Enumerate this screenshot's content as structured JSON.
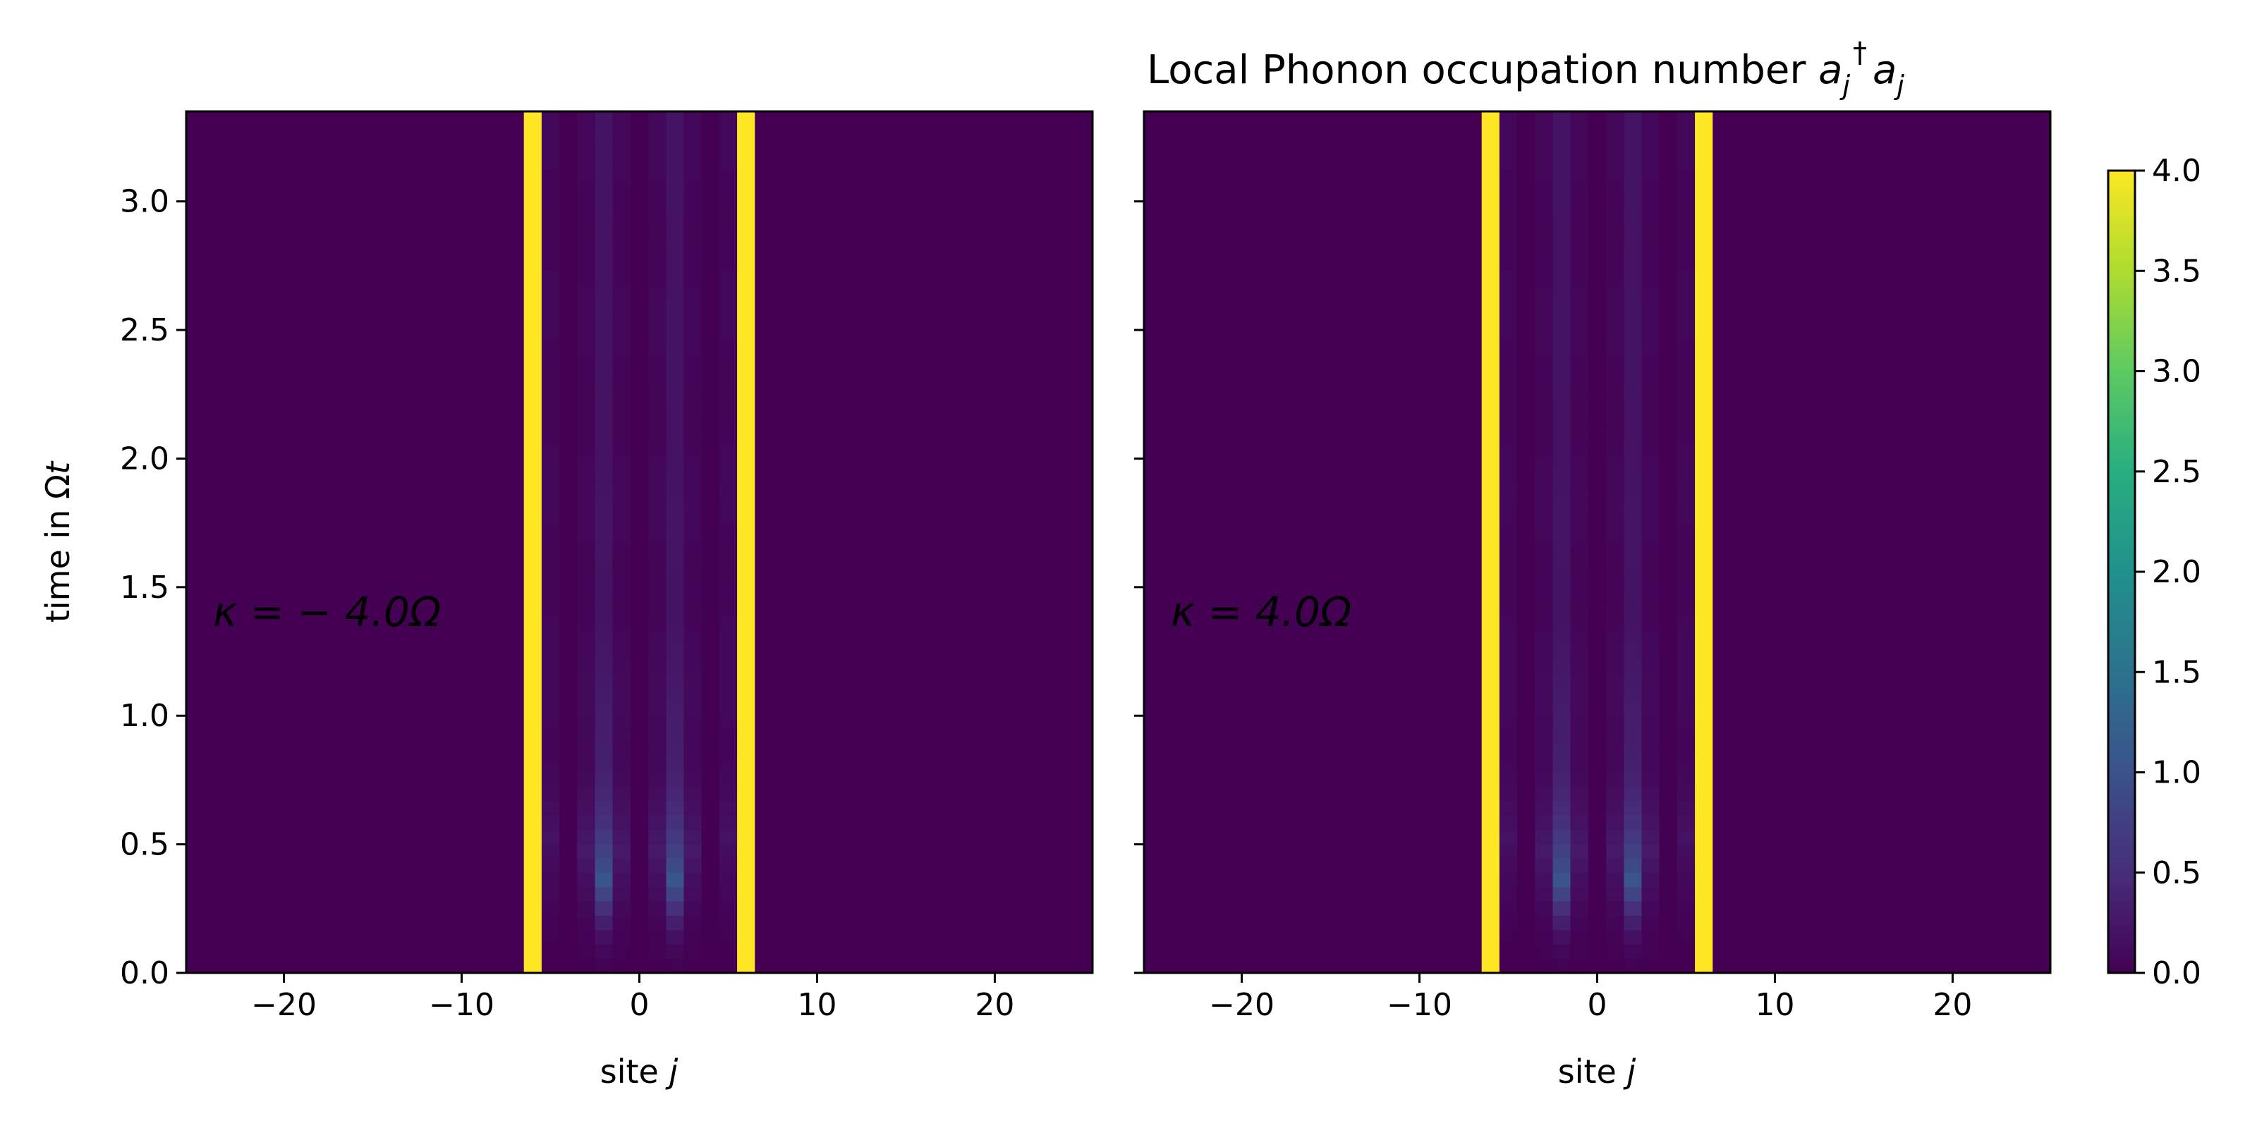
{
  "chart_data": {
    "type": "heatmap",
    "title": "Local Phonon occupation number a_j† a_j",
    "title_parts": {
      "main": "Local Phonon occupation number ",
      "op1": "a",
      "sub1": "j",
      "dag": "†",
      "op2": "a",
      "sub2": "j"
    },
    "xlabel": {
      "text": "site ",
      "var": "j"
    },
    "ylabel": {
      "text": "time in Ω",
      "var": "t"
    },
    "xlim": [
      -25.5,
      25.5
    ],
    "ylim": [
      0.0,
      3.35
    ],
    "x_ticks": [
      -20,
      -10,
      0,
      10,
      20
    ],
    "x_tick_labels": [
      "−20",
      "−10",
      "0",
      "10",
      "20"
    ],
    "y_ticks": [
      0.0,
      0.5,
      1.0,
      1.5,
      2.0,
      2.5,
      3.0
    ],
    "y_tick_labels": [
      "0.0",
      "0.5",
      "1.0",
      "1.5",
      "2.0",
      "2.5",
      "3.0"
    ],
    "colorbar": {
      "colormap": "viridis",
      "range": [
        0.0,
        4.0
      ],
      "ticks": [
        0.0,
        0.5,
        1.0,
        1.5,
        2.0,
        2.5,
        3.0,
        3.5,
        4.0
      ],
      "tick_labels": [
        "0.0",
        "0.5",
        "1.0",
        "1.5",
        "2.0",
        "2.5",
        "3.0",
        "3.5",
        "4.0"
      ]
    },
    "panels": [
      {
        "annotation": "κ = − 4.0Ω",
        "occupation": {
          "background": 0.0,
          "constant_sites": [
            {
              "site": -6,
              "value": 4.0
            },
            {
              "site": 6,
              "value": 4.0
            }
          ],
          "dynamic_sites": [
            {
              "site": -2,
              "peak": 1.05,
              "peak_time": 0.35,
              "tail": 0.2
            },
            {
              "site": 2,
              "peak": 1.05,
              "peak_time": 0.35,
              "tail": 0.2
            },
            {
              "site": -3,
              "peak": 0.25,
              "peak_time": 0.45,
              "tail": 0.05
            },
            {
              "site": -1,
              "peak": 0.25,
              "peak_time": 0.45,
              "tail": 0.05
            },
            {
              "site": 1,
              "peak": 0.25,
              "peak_time": 0.45,
              "tail": 0.05
            },
            {
              "site": 3,
              "peak": 0.25,
              "peak_time": 0.45,
              "tail": 0.05
            },
            {
              "site": -5,
              "peak": 0.15,
              "peak_time": 0.5,
              "tail": 0.05
            },
            {
              "site": 5,
              "peak": 0.15,
              "peak_time": 0.5,
              "tail": 0.05
            }
          ]
        }
      },
      {
        "annotation": "κ = 4.0Ω",
        "occupation": {
          "background": 0.0,
          "constant_sites": [
            {
              "site": -6,
              "value": 4.0
            },
            {
              "site": 6,
              "value": 4.0
            }
          ],
          "dynamic_sites": [
            {
              "site": -2,
              "peak": 1.05,
              "peak_time": 0.35,
              "tail": 0.2
            },
            {
              "site": 2,
              "peak": 1.05,
              "peak_time": 0.35,
              "tail": 0.2
            },
            {
              "site": -3,
              "peak": 0.25,
              "peak_time": 0.45,
              "tail": 0.05
            },
            {
              "site": -1,
              "peak": 0.25,
              "peak_time": 0.45,
              "tail": 0.05
            },
            {
              "site": 1,
              "peak": 0.25,
              "peak_time": 0.45,
              "tail": 0.05
            },
            {
              "site": 3,
              "peak": 0.25,
              "peak_time": 0.45,
              "tail": 0.05
            },
            {
              "site": -5,
              "peak": 0.15,
              "peak_time": 0.5,
              "tail": 0.05
            },
            {
              "site": 5,
              "peak": 0.15,
              "peak_time": 0.5,
              "tail": 0.05
            }
          ]
        }
      }
    ]
  }
}
